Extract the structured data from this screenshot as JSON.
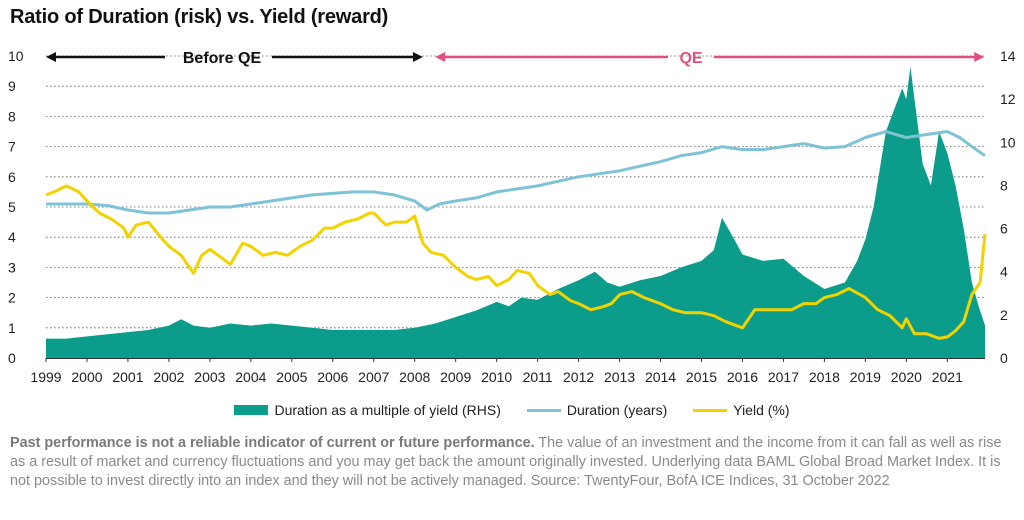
{
  "title": "Ratio of Duration (risk) vs. Yield (reward)",
  "footnote": {
    "bold": "Past performance is not a reliable indicator of current or future performance.",
    "text": " The value of an investment and the income from it can fall as well as rise as a result of market and currency fluctuations and you may get back the amount originally invested. Underlying data BAML Global Broad Market Index. It is not possible to invest directly into an index and they will not be actively managed. Source: TwentyFour, BofA ICE Indices, 31 October 2022"
  },
  "colors": {
    "ratio": "#0b9c8c",
    "duration": "#7ec2d6",
    "yield": "#f2d300",
    "before_qe": "#111111",
    "qe": "#e0507f",
    "grid": "#555555"
  },
  "chart_data": {
    "type": "line",
    "annotations": [
      {
        "label": "Before QE",
        "from": 1999.0,
        "to": 2008.2
      },
      {
        "label": "QE",
        "from": 2008.5,
        "to": 2021.9
      }
    ],
    "x_ticks": [
      "1999",
      "2000",
      "2001",
      "2002",
      "2003",
      "2004",
      "2005",
      "2006",
      "2007",
      "2008",
      "2009",
      "2010",
      "2011",
      "2012",
      "2013",
      "2014",
      "2015",
      "2016",
      "2017",
      "2018",
      "2019",
      "2020",
      "2021"
    ],
    "xlim": [
      1999.0,
      2021.92
    ],
    "left_axis": {
      "ylim": [
        0,
        10
      ],
      "ticks": [
        "0",
        "1",
        "2",
        "3",
        "4",
        "5",
        "6",
        "7",
        "8",
        "9",
        "10"
      ]
    },
    "right_axis": {
      "ylim": [
        0,
        14
      ],
      "ticks": [
        "0",
        "2",
        "4",
        "6",
        "8",
        "10",
        "12",
        "14"
      ]
    },
    "grid": true,
    "legend": {
      "position": "bottom"
    },
    "series": [
      {
        "name": "Duration as a multiple of yield (RHS)",
        "type": "area",
        "axis": "right",
        "x": [
          1999.0,
          1999.5,
          2000.0,
          2000.5,
          2001.0,
          2001.5,
          2002.0,
          2002.3,
          2002.6,
          2003.0,
          2003.5,
          2004.0,
          2004.5,
          2005.0,
          2005.5,
          2006.0,
          2006.5,
          2007.0,
          2007.5,
          2008.0,
          2008.5,
          2009.0,
          2009.5,
          2010.0,
          2010.3,
          2010.6,
          2011.0,
          2011.5,
          2012.0,
          2012.4,
          2012.7,
          2013.0,
          2013.5,
          2014.0,
          2014.5,
          2015.0,
          2015.3,
          2015.5,
          2015.8,
          2016.0,
          2016.5,
          2017.0,
          2017.5,
          2018.0,
          2018.5,
          2018.8,
          2019.0,
          2019.2,
          2019.5,
          2019.7,
          2019.9,
          2020.0,
          2020.1,
          2020.2,
          2020.4,
          2020.6,
          2020.8,
          2021.0,
          2021.2,
          2021.4,
          2021.6,
          2021.75,
          2021.92
        ],
        "values": [
          0.9,
          0.9,
          1.0,
          1.1,
          1.2,
          1.3,
          1.5,
          1.8,
          1.5,
          1.4,
          1.6,
          1.5,
          1.6,
          1.5,
          1.4,
          1.3,
          1.3,
          1.3,
          1.3,
          1.4,
          1.6,
          1.9,
          2.2,
          2.6,
          2.4,
          2.8,
          2.7,
          3.2,
          3.6,
          4.0,
          3.5,
          3.3,
          3.6,
          3.8,
          4.2,
          4.5,
          5.0,
          6.5,
          5.5,
          4.8,
          4.5,
          4.6,
          3.8,
          3.2,
          3.5,
          4.5,
          5.5,
          7.0,
          10.5,
          11.5,
          12.5,
          12.0,
          13.5,
          12.0,
          9.0,
          8.0,
          10.5,
          9.5,
          8.0,
          6.0,
          3.5,
          2.5,
          1.5
        ]
      },
      {
        "name": "Duration (years)",
        "type": "line",
        "axis": "left",
        "x": [
          1999.0,
          1999.5,
          2000.0,
          2000.5,
          2001.0,
          2001.5,
          2002.0,
          2002.5,
          2003.0,
          2003.5,
          2004.0,
          2004.5,
          2005.0,
          2005.5,
          2006.0,
          2006.5,
          2007.0,
          2007.5,
          2008.0,
          2008.3,
          2008.6,
          2009.0,
          2009.5,
          2010.0,
          2010.5,
          2011.0,
          2011.5,
          2012.0,
          2012.5,
          2013.0,
          2013.5,
          2014.0,
          2014.5,
          2015.0,
          2015.5,
          2016.0,
          2016.5,
          2017.0,
          2017.5,
          2018.0,
          2018.5,
          2019.0,
          2019.5,
          2020.0,
          2020.5,
          2021.0,
          2021.3,
          2021.6,
          2021.92
        ],
        "values": [
          5.1,
          5.1,
          5.1,
          5.05,
          4.9,
          4.8,
          4.8,
          4.9,
          5.0,
          5.0,
          5.1,
          5.2,
          5.3,
          5.4,
          5.45,
          5.5,
          5.5,
          5.4,
          5.2,
          4.9,
          5.1,
          5.2,
          5.3,
          5.5,
          5.6,
          5.7,
          5.85,
          6.0,
          6.1,
          6.2,
          6.35,
          6.5,
          6.7,
          6.8,
          7.0,
          6.9,
          6.9,
          7.0,
          7.1,
          6.95,
          7.0,
          7.3,
          7.5,
          7.3,
          7.4,
          7.5,
          7.3,
          7.0,
          6.7
        ]
      },
      {
        "name": "Yield (%)",
        "type": "line",
        "axis": "left",
        "x": [
          1999.0,
          1999.2,
          1999.5,
          1999.8,
          2000.0,
          2000.3,
          2000.6,
          2000.9,
          2001.0,
          2001.2,
          2001.5,
          2001.8,
          2002.0,
          2002.3,
          2002.6,
          2002.8,
          2003.0,
          2003.3,
          2003.5,
          2003.8,
          2004.0,
          2004.3,
          2004.6,
          2004.9,
          2005.2,
          2005.5,
          2005.8,
          2006.0,
          2006.3,
          2006.6,
          2006.9,
          2007.0,
          2007.3,
          2007.5,
          2007.8,
          2008.0,
          2008.2,
          2008.4,
          2008.7,
          2009.0,
          2009.3,
          2009.5,
          2009.8,
          2010.0,
          2010.3,
          2010.5,
          2010.8,
          2011.0,
          2011.3,
          2011.5,
          2011.8,
          2012.0,
          2012.3,
          2012.6,
          2012.8,
          2013.0,
          2013.3,
          2013.6,
          2014.0,
          2014.3,
          2014.6,
          2015.0,
          2015.3,
          2015.6,
          2015.8,
          2016.0,
          2016.3,
          2016.6,
          2016.9,
          2017.2,
          2017.5,
          2017.8,
          2018.0,
          2018.3,
          2018.6,
          2019.0,
          2019.3,
          2019.6,
          2019.9,
          2020.0,
          2020.2,
          2020.5,
          2020.8,
          2021.0,
          2021.2,
          2021.4,
          2021.6,
          2021.8,
          2021.92
        ],
        "values": [
          5.4,
          5.5,
          5.7,
          5.5,
          5.2,
          4.8,
          4.6,
          4.3,
          4.0,
          4.4,
          4.5,
          4.0,
          3.7,
          3.4,
          2.8,
          3.4,
          3.6,
          3.3,
          3.1,
          3.8,
          3.7,
          3.4,
          3.5,
          3.4,
          3.7,
          3.9,
          4.3,
          4.3,
          4.5,
          4.6,
          4.8,
          4.8,
          4.4,
          4.5,
          4.5,
          4.7,
          3.8,
          3.5,
          3.4,
          3.0,
          2.7,
          2.6,
          2.7,
          2.4,
          2.6,
          2.9,
          2.8,
          2.4,
          2.1,
          2.2,
          1.9,
          1.8,
          1.6,
          1.7,
          1.8,
          2.1,
          2.2,
          2.0,
          1.8,
          1.6,
          1.5,
          1.5,
          1.4,
          1.2,
          1.1,
          1.0,
          1.6,
          1.6,
          1.6,
          1.6,
          1.8,
          1.8,
          2.0,
          2.1,
          2.3,
          2.0,
          1.6,
          1.4,
          1.0,
          1.3,
          0.8,
          0.8,
          0.65,
          0.7,
          0.9,
          1.2,
          2.1,
          2.5,
          4.1
        ]
      }
    ]
  }
}
